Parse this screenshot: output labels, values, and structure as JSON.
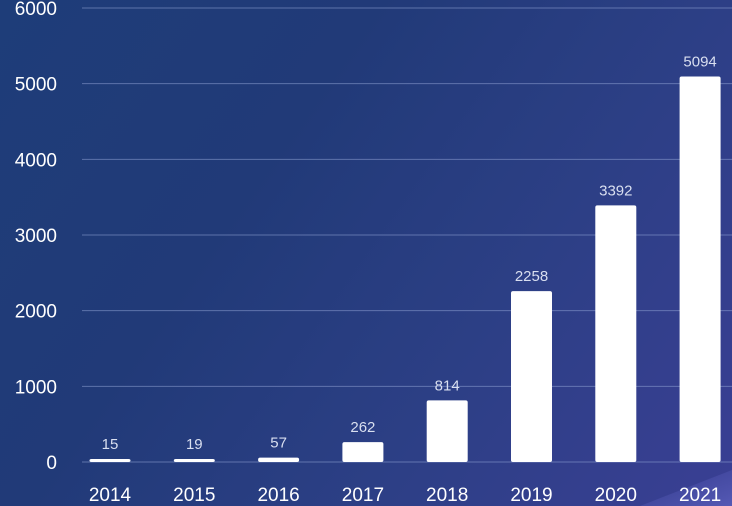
{
  "chart_data": {
    "type": "bar",
    "title": "",
    "xlabel": "",
    "ylabel": "",
    "categories": [
      "2014",
      "2015",
      "2016",
      "2017",
      "2018",
      "2019",
      "2020",
      "2021"
    ],
    "values": [
      15,
      19,
      57,
      262,
      814,
      2258,
      3392,
      5094
    ],
    "ylim": [
      0,
      6000
    ],
    "yticks": [
      0,
      1000,
      2000,
      3000,
      4000,
      5000,
      6000
    ],
    "grid": true,
    "data_labels": true,
    "colors": {
      "bar": "#ffffff",
      "gridline": "#8fa3d4",
      "background": "#213a78"
    }
  }
}
